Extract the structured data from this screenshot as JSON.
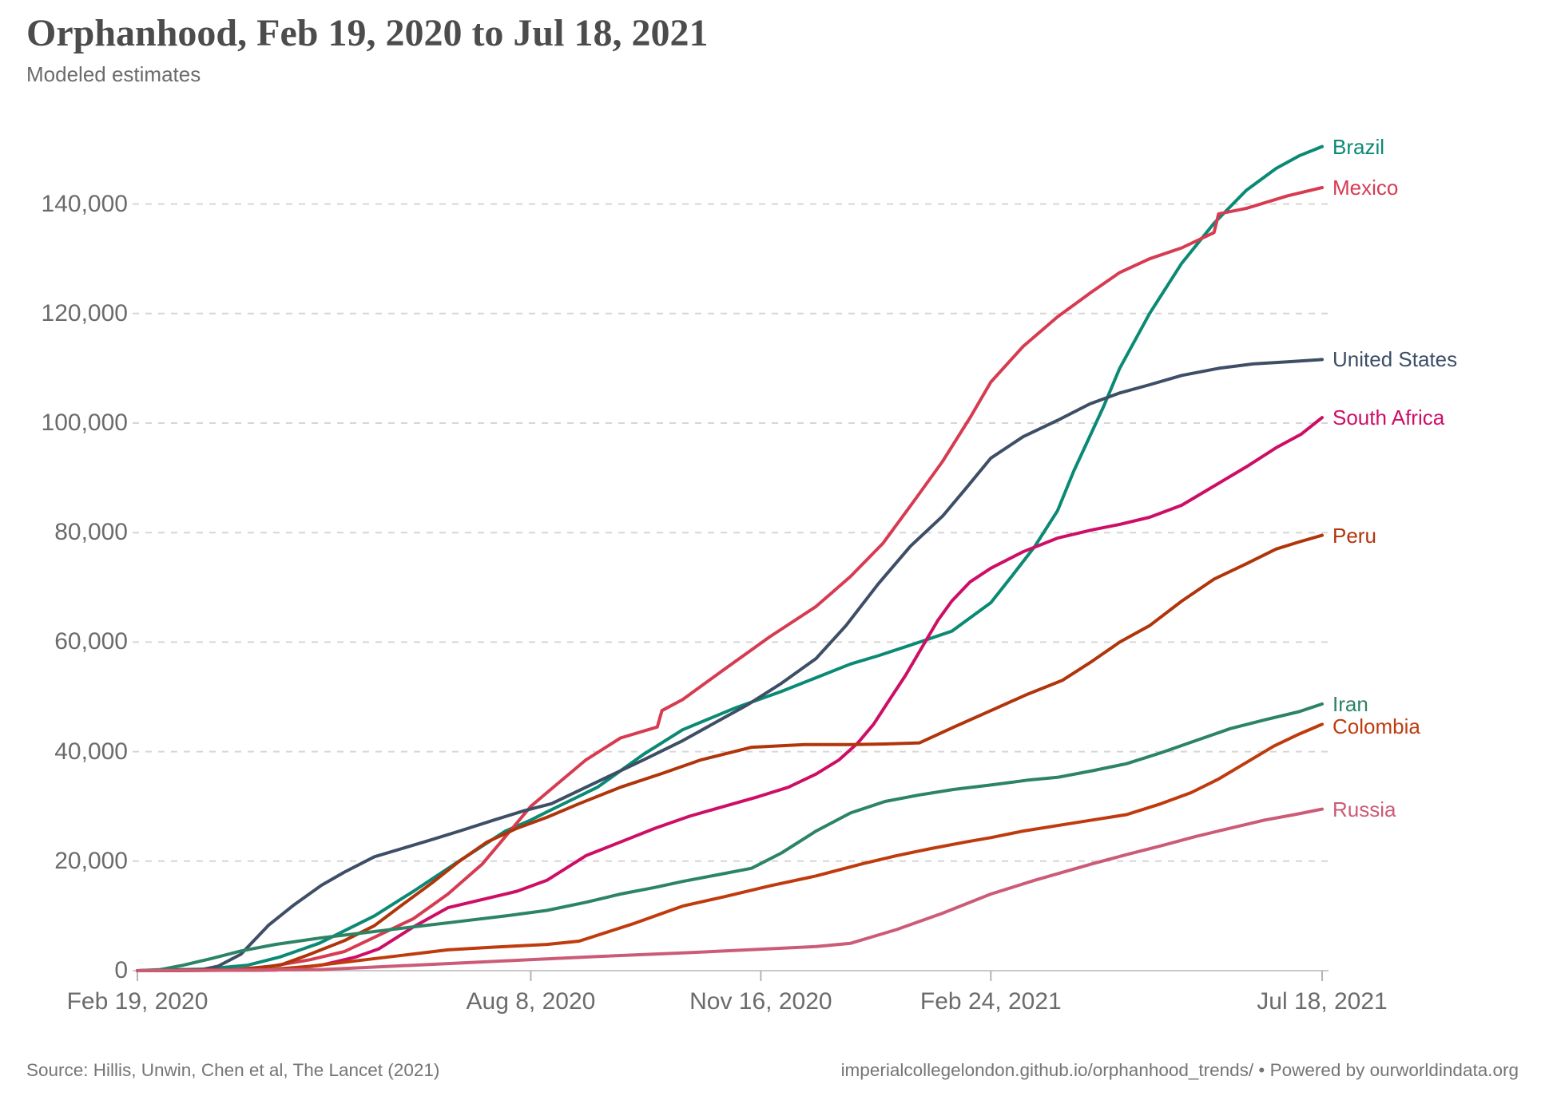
{
  "header": {
    "title": "Orphanhood, Feb 19, 2020 to Jul 18, 2021",
    "subtitle": "Modeled estimates"
  },
  "footer": {
    "source": "Source: Hillis, Unwin, Chen et al, The Lancet (2021)",
    "attribution": "imperialcollegelondon.github.io/orphanhood_trends/ • Powered by ourworldindata.org"
  },
  "chart_data": {
    "type": "line",
    "title": "Orphanhood, Feb 19, 2020 to Jul 18, 2021",
    "subtitle": "Modeled estimates",
    "xlabel": "",
    "ylabel": "",
    "legend_position": "end-of-line labels, right side",
    "x_axis": {
      "unit": "days since Feb 19, 2020",
      "total_days": 515,
      "ticks": [
        {
          "label": "Feb 19, 2020",
          "day": 0
        },
        {
          "label": "Aug 8, 2020",
          "day": 171
        },
        {
          "label": "Nov 16, 2020",
          "day": 271
        },
        {
          "label": "Feb 24, 2021",
          "day": 371
        },
        {
          "label": "Jul 18, 2021",
          "day": 515
        }
      ]
    },
    "y_axis": {
      "ylim": [
        0,
        152000
      ],
      "grid": "dashed",
      "ticks": [
        {
          "value": 0,
          "label": "0"
        },
        {
          "value": 20000,
          "label": "20,000"
        },
        {
          "value": 40000,
          "label": "40,000"
        },
        {
          "value": 60000,
          "label": "60,000"
        },
        {
          "value": 80000,
          "label": "80,000"
        },
        {
          "value": 100000,
          "label": "100,000"
        },
        {
          "value": 120000,
          "label": "120,000"
        },
        {
          "value": 140000,
          "label": "140,000"
        }
      ]
    },
    "style": {
      "gridline_color": "#d6d6d6",
      "axis_color": "#c9c9c9",
      "tick_color": "#b3b3b3",
      "axis_text_color": "#6b6b6b",
      "title_color": "#4c4c4c",
      "subtitle_color": "#6b6b6b",
      "footer_color": "#757575",
      "line_width": 4
    },
    "series": [
      {
        "name": "Brazil",
        "color": "#0A8A74",
        "end_value": 150500,
        "points": [
          [
            0,
            0
          ],
          [
            30,
            300
          ],
          [
            48,
            1000
          ],
          [
            62,
            2500
          ],
          [
            79,
            5000
          ],
          [
            103,
            10000
          ],
          [
            120,
            14500
          ],
          [
            138,
            19500
          ],
          [
            160,
            25500
          ],
          [
            171,
            27500
          ],
          [
            178,
            29000
          ],
          [
            200,
            33500
          ],
          [
            220,
            39500
          ],
          [
            237,
            44000
          ],
          [
            260,
            48000
          ],
          [
            280,
            51000
          ],
          [
            295,
            53500
          ],
          [
            310,
            56000
          ],
          [
            322,
            57500
          ],
          [
            340,
            60000
          ],
          [
            354,
            62000
          ],
          [
            371,
            67200
          ],
          [
            380,
            72000
          ],
          [
            390,
            77400
          ],
          [
            400,
            84000
          ],
          [
            407,
            91200
          ],
          [
            420,
            103000
          ],
          [
            427,
            110000
          ],
          [
            440,
            120000
          ],
          [
            454,
            129200
          ],
          [
            468,
            136500
          ],
          [
            482,
            142500
          ],
          [
            495,
            146500
          ],
          [
            505,
            148800
          ],
          [
            515,
            150500
          ]
        ]
      },
      {
        "name": "Mexico",
        "color": "#D73B51",
        "end_value": 143000,
        "points": [
          [
            0,
            0
          ],
          [
            40,
            100
          ],
          [
            58,
            800
          ],
          [
            75,
            2000
          ],
          [
            90,
            3500
          ],
          [
            105,
            6500
          ],
          [
            120,
            9500
          ],
          [
            135,
            14000
          ],
          [
            150,
            19500
          ],
          [
            165,
            27000
          ],
          [
            171,
            30000
          ],
          [
            178,
            32500
          ],
          [
            195,
            38500
          ],
          [
            210,
            42500
          ],
          [
            226,
            44500
          ],
          [
            228,
            47500
          ],
          [
            237,
            49500
          ],
          [
            255,
            55000
          ],
          [
            275,
            61000
          ],
          [
            295,
            66500
          ],
          [
            310,
            72000
          ],
          [
            324,
            78000
          ],
          [
            338,
            86000
          ],
          [
            350,
            93000
          ],
          [
            362,
            101000
          ],
          [
            371,
            107500
          ],
          [
            385,
            114000
          ],
          [
            400,
            119400
          ],
          [
            415,
            124000
          ],
          [
            427,
            127500
          ],
          [
            440,
            130000
          ],
          [
            454,
            132000
          ],
          [
            468,
            134800
          ],
          [
            470,
            138200
          ],
          [
            482,
            139200
          ],
          [
            500,
            141500
          ],
          [
            515,
            143000
          ]
        ]
      },
      {
        "name": "United States",
        "color": "#3D4E66",
        "end_value": 111600,
        "points": [
          [
            0,
            0
          ],
          [
            28,
            200
          ],
          [
            35,
            800
          ],
          [
            45,
            3000
          ],
          [
            57,
            8300
          ],
          [
            68,
            12000
          ],
          [
            80,
            15600
          ],
          [
            90,
            18000
          ],
          [
            103,
            20800
          ],
          [
            115,
            22300
          ],
          [
            127,
            23800
          ],
          [
            140,
            25500
          ],
          [
            155,
            27500
          ],
          [
            168,
            29200
          ],
          [
            180,
            30500
          ],
          [
            200,
            34500
          ],
          [
            220,
            38500
          ],
          [
            237,
            42000
          ],
          [
            252,
            45500
          ],
          [
            265,
            48500
          ],
          [
            280,
            52500
          ],
          [
            295,
            57000
          ],
          [
            308,
            63000
          ],
          [
            322,
            70600
          ],
          [
            336,
            77500
          ],
          [
            350,
            83000
          ],
          [
            360,
            88000
          ],
          [
            371,
            93600
          ],
          [
            385,
            97500
          ],
          [
            400,
            100500
          ],
          [
            414,
            103500
          ],
          [
            427,
            105500
          ],
          [
            440,
            107000
          ],
          [
            454,
            108700
          ],
          [
            470,
            110000
          ],
          [
            485,
            110800
          ],
          [
            500,
            111200
          ],
          [
            515,
            111600
          ]
        ]
      },
      {
        "name": "South Africa",
        "color": "#CD0E66",
        "end_value": 101000,
        "points": [
          [
            0,
            0
          ],
          [
            60,
            100
          ],
          [
            80,
            1000
          ],
          [
            95,
            2500
          ],
          [
            105,
            4000
          ],
          [
            120,
            8000
          ],
          [
            135,
            11500
          ],
          [
            150,
            13000
          ],
          [
            165,
            14500
          ],
          [
            178,
            16500
          ],
          [
            195,
            21000
          ],
          [
            210,
            23500
          ],
          [
            225,
            26000
          ],
          [
            240,
            28200
          ],
          [
            255,
            30000
          ],
          [
            270,
            31800
          ],
          [
            283,
            33500
          ],
          [
            295,
            35900
          ],
          [
            305,
            38500
          ],
          [
            313,
            41500
          ],
          [
            320,
            45000
          ],
          [
            327,
            49500
          ],
          [
            334,
            54000
          ],
          [
            341,
            59000
          ],
          [
            348,
            64000
          ],
          [
            354,
            67500
          ],
          [
            362,
            71000
          ],
          [
            371,
            73500
          ],
          [
            385,
            76500
          ],
          [
            400,
            79000
          ],
          [
            415,
            80500
          ],
          [
            427,
            81500
          ],
          [
            440,
            82800
          ],
          [
            454,
            85000
          ],
          [
            468,
            88500
          ],
          [
            482,
            92000
          ],
          [
            495,
            95500
          ],
          [
            506,
            98000
          ],
          [
            515,
            101000
          ]
        ]
      },
      {
        "name": "Peru",
        "color": "#B0350A",
        "end_value": 79500,
        "points": [
          [
            0,
            0
          ],
          [
            45,
            200
          ],
          [
            62,
            1000
          ],
          [
            75,
            3000
          ],
          [
            90,
            5500
          ],
          [
            103,
            8200
          ],
          [
            115,
            12000
          ],
          [
            128,
            16000
          ],
          [
            140,
            20000
          ],
          [
            152,
            23500
          ],
          [
            165,
            26000
          ],
          [
            178,
            28000
          ],
          [
            192,
            30500
          ],
          [
            210,
            33500
          ],
          [
            228,
            36000
          ],
          [
            245,
            38500
          ],
          [
            267,
            40800
          ],
          [
            290,
            41300
          ],
          [
            310,
            41300
          ],
          [
            325,
            41400
          ],
          [
            340,
            41600
          ],
          [
            355,
            44500
          ],
          [
            371,
            47500
          ],
          [
            387,
            50500
          ],
          [
            402,
            53000
          ],
          [
            415,
            56500
          ],
          [
            427,
            60000
          ],
          [
            440,
            63000
          ],
          [
            454,
            67500
          ],
          [
            468,
            71500
          ],
          [
            482,
            74300
          ],
          [
            495,
            77000
          ],
          [
            505,
            78300
          ],
          [
            515,
            79500
          ]
        ]
      },
      {
        "name": "Iran",
        "color": "#2C8465",
        "end_value": 48700,
        "points": [
          [
            0,
            0
          ],
          [
            10,
            200
          ],
          [
            20,
            1000
          ],
          [
            32,
            2200
          ],
          [
            45,
            3600
          ],
          [
            60,
            4800
          ],
          [
            80,
            6000
          ],
          [
            100,
            7000
          ],
          [
            120,
            8000
          ],
          [
            140,
            9000
          ],
          [
            160,
            10000
          ],
          [
            178,
            11000
          ],
          [
            195,
            12500
          ],
          [
            210,
            14000
          ],
          [
            225,
            15200
          ],
          [
            237,
            16300
          ],
          [
            252,
            17500
          ],
          [
            267,
            18700
          ],
          [
            280,
            21500
          ],
          [
            295,
            25500
          ],
          [
            310,
            28800
          ],
          [
            325,
            30900
          ],
          [
            340,
            32100
          ],
          [
            355,
            33100
          ],
          [
            371,
            33900
          ],
          [
            387,
            34800
          ],
          [
            400,
            35300
          ],
          [
            415,
            36500
          ],
          [
            430,
            37800
          ],
          [
            445,
            39800
          ],
          [
            460,
            42000
          ],
          [
            475,
            44200
          ],
          [
            490,
            45800
          ],
          [
            505,
            47300
          ],
          [
            515,
            48700
          ]
        ]
      },
      {
        "name": "Colombia",
        "color": "#BF3B0E",
        "end_value": 45000,
        "points": [
          [
            0,
            0
          ],
          [
            55,
            100
          ],
          [
            75,
            800
          ],
          [
            95,
            1800
          ],
          [
            115,
            2800
          ],
          [
            135,
            3800
          ],
          [
            155,
            4300
          ],
          [
            178,
            4800
          ],
          [
            192,
            5400
          ],
          [
            215,
            8500
          ],
          [
            237,
            11800
          ],
          [
            255,
            13500
          ],
          [
            275,
            15500
          ],
          [
            295,
            17300
          ],
          [
            315,
            19500
          ],
          [
            330,
            21000
          ],
          [
            345,
            22300
          ],
          [
            360,
            23500
          ],
          [
            371,
            24300
          ],
          [
            385,
            25500
          ],
          [
            400,
            26500
          ],
          [
            415,
            27500
          ],
          [
            430,
            28500
          ],
          [
            445,
            30500
          ],
          [
            458,
            32500
          ],
          [
            470,
            35000
          ],
          [
            482,
            38000
          ],
          [
            494,
            41000
          ],
          [
            505,
            43200
          ],
          [
            515,
            45000
          ]
        ]
      },
      {
        "name": "Russia",
        "color": "#CB5B76",
        "end_value": 29500,
        "points": [
          [
            0,
            0
          ],
          [
            80,
            200
          ],
          [
            110,
            800
          ],
          [
            135,
            1300
          ],
          [
            165,
            1900
          ],
          [
            200,
            2600
          ],
          [
            240,
            3300
          ],
          [
            270,
            3900
          ],
          [
            295,
            4400
          ],
          [
            310,
            5000
          ],
          [
            330,
            7500
          ],
          [
            350,
            10500
          ],
          [
            371,
            14000
          ],
          [
            390,
            16500
          ],
          [
            415,
            19500
          ],
          [
            430,
            21200
          ],
          [
            445,
            22800
          ],
          [
            460,
            24500
          ],
          [
            475,
            26000
          ],
          [
            490,
            27500
          ],
          [
            503,
            28500
          ],
          [
            515,
            29500
          ]
        ]
      }
    ]
  }
}
